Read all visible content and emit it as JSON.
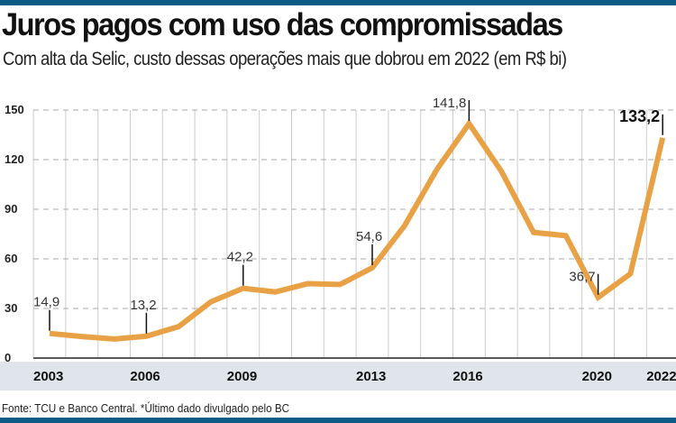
{
  "header": {
    "title": "Juros pagos com uso das compromissadas",
    "subtitle": "Com alta da Selic, custo dessas operações mais que dobrou em 2022 (em R$ bi)"
  },
  "footer": {
    "source": "Fonte: TCU e Banco Central. *Último dado divulgado pelo BC"
  },
  "colors": {
    "line": "#e8a145",
    "bars": "#0b5b86",
    "axis_band": "#dfe5ea",
    "grid": "#cccccc"
  },
  "chart_data": {
    "type": "line",
    "title": "Juros pagos com uso das compromissadas",
    "ylabel": "R$ bi",
    "ylim": [
      0,
      150
    ],
    "yticks": [
      "0",
      "30",
      "60",
      "90",
      "120",
      "150"
    ],
    "ytick_values": [
      0,
      30,
      60,
      90,
      120,
      150
    ],
    "x": [
      2003,
      2004,
      2005,
      2006,
      2007,
      2008,
      2009,
      2010,
      2011,
      2012,
      2013,
      2014,
      2015,
      2016,
      2017,
      2018,
      2019,
      2020,
      2021,
      2022
    ],
    "values": [
      14.9,
      13,
      11.5,
      13.2,
      19,
      34,
      42.2,
      40,
      45,
      44.5,
      54.6,
      80,
      114,
      141.8,
      113,
      76,
      74,
      36.7,
      51,
      133.2
    ],
    "xtick_labels": [
      {
        "year": 2003,
        "label": "2003"
      },
      {
        "year": 2006,
        "label": "2006"
      },
      {
        "year": 2009,
        "label": "2009"
      },
      {
        "year": 2013,
        "label": "2013"
      },
      {
        "year": 2016,
        "label": "2016"
      },
      {
        "year": 2020,
        "label": "2020"
      },
      {
        "year": 2022,
        "label": "2022*"
      }
    ],
    "data_labels": [
      {
        "year": 2003,
        "label": "14,9",
        "bold": false
      },
      {
        "year": 2006,
        "label": "13,2",
        "bold": false
      },
      {
        "year": 2009,
        "label": "42,2",
        "bold": false
      },
      {
        "year": 2013,
        "label": "54,6",
        "bold": false
      },
      {
        "year": 2016,
        "label": "141,8",
        "bold": false
      },
      {
        "year": 2020,
        "label": "36,7",
        "bold": false
      },
      {
        "year": 2022,
        "label": "133,2",
        "bold": true
      }
    ],
    "grid": true
  }
}
